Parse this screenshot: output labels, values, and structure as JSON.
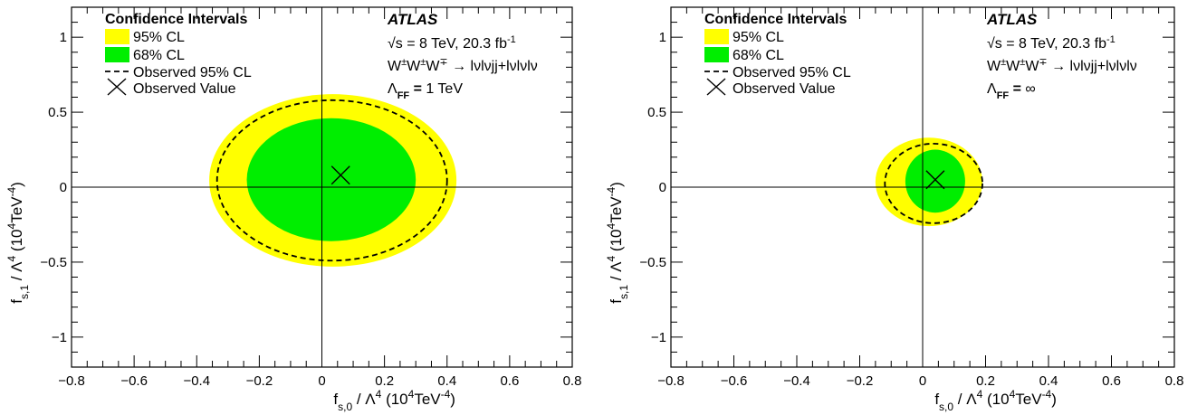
{
  "chart_data": [
    {
      "type": "contour",
      "xlabel": "f_{s,0} / Λ^4 (10^4TeV^-4)",
      "ylabel": "f_{s,1} / Λ^4 (10^4TeV^-4)",
      "xlim": [
        -0.8,
        0.8
      ],
      "ylim": [
        -1.2,
        1.2
      ],
      "x_ticks": [
        "−0.8",
        "−0.6",
        "−0.4",
        "−0.2",
        "0",
        "0.2",
        "0.4",
        "0.6",
        "0.8"
      ],
      "y_ticks": [
        "−1",
        "−0.5",
        "0",
        "0.5",
        "1"
      ],
      "legend": {
        "title": "Confidence Intervals",
        "placement": "top-left",
        "entries": [
          "95% CL",
          "68% CL",
          "Observed 95% CL",
          "Observed Value"
        ]
      },
      "annotations": {
        "experiment": "ATLAS",
        "energy": "√s = 8 TeV, 20.3 fb-1",
        "process": "W±W±W∓ → lνlνjj+lνlνlν",
        "cutoff": "Λ_FF = 1 TeV"
      },
      "regions": {
        "cl95": {
          "x_range": [
            -0.36,
            0.43
          ],
          "y_range": [
            -0.53,
            0.62
          ]
        },
        "cl68": {
          "x_range": [
            -0.24,
            0.3
          ],
          "y_range": [
            -0.36,
            0.46
          ]
        },
        "observed_95": {
          "x_range": [
            -0.335,
            0.4
          ],
          "y_range": [
            -0.49,
            0.58
          ]
        }
      },
      "observed_value": {
        "x": 0.06,
        "y": 0.08
      }
    },
    {
      "type": "contour",
      "xlabel": "f_{s,0} / Λ^4 (10^4TeV^-4)",
      "ylabel": "f_{s,1} / Λ^4 (10^4TeV^-4)",
      "xlim": [
        -0.8,
        0.8
      ],
      "ylim": [
        -1.2,
        1.2
      ],
      "x_ticks": [
        "−0.8",
        "−0.6",
        "−0.4",
        "−0.2",
        "0",
        "0.2",
        "0.4",
        "0.6",
        "0.8"
      ],
      "y_ticks": [
        "−1",
        "−0.5",
        "0",
        "0.5",
        "1"
      ],
      "legend": {
        "title": "Confidence Intervals",
        "placement": "top-left",
        "entries": [
          "95% CL",
          "68% CL",
          "Observed 95% CL",
          "Observed Value"
        ]
      },
      "annotations": {
        "experiment": "ATLAS",
        "energy": "√s = 8 TeV, 20.3 fb-1",
        "process": "W±W±W∓ → lνlνjj+lνlνlν",
        "cutoff": "Λ_FF = ∞"
      },
      "regions": {
        "cl95": {
          "x_range": [
            -0.15,
            0.19
          ],
          "y_range": [
            -0.26,
            0.33
          ]
        },
        "cl68": {
          "x_range": [
            -0.055,
            0.135
          ],
          "y_range": [
            -0.17,
            0.25
          ]
        },
        "observed_95": {
          "x_range": [
            -0.12,
            0.19
          ],
          "y_range": [
            -0.24,
            0.29
          ]
        }
      },
      "observed_value": {
        "x": 0.04,
        "y": 0.05
      }
    }
  ],
  "colors": {
    "cl95": "#ffff00",
    "cl68": "#00ee00",
    "line": "#000000"
  }
}
